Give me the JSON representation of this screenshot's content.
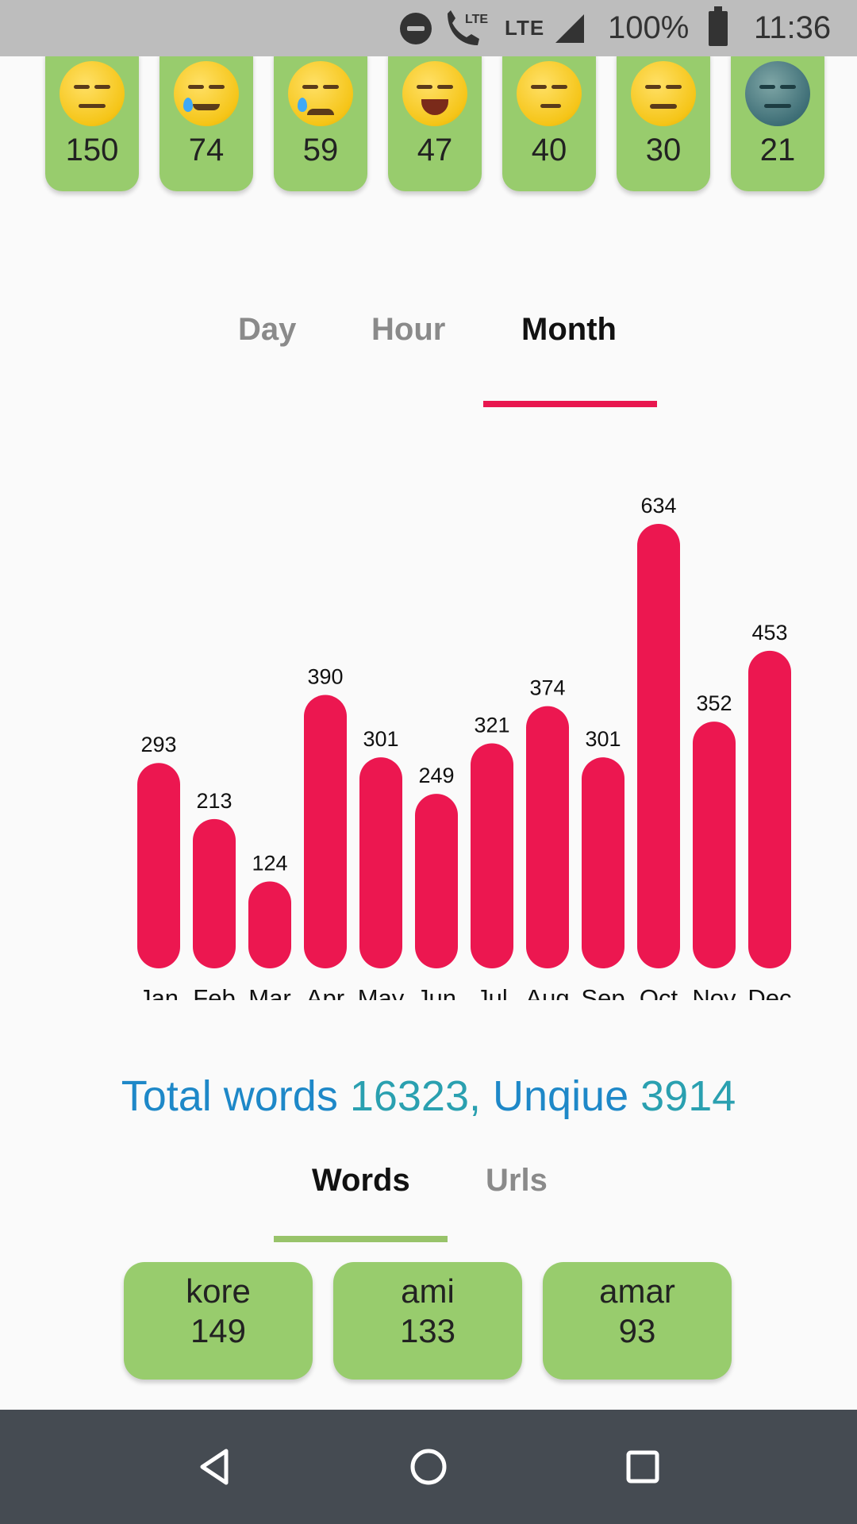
{
  "status_bar": {
    "lte_call": "LTE",
    "lte": "LTE",
    "battery_percent": "100%",
    "time": "11:36",
    "icons": [
      "do-not-disturb-icon",
      "volte-call-icon",
      "signal-icon",
      "battery-icon"
    ]
  },
  "emoji_stats": [
    {
      "emoji": "expressionless-face",
      "count": "150"
    },
    {
      "emoji": "smiling-face-with-tear",
      "count": "74"
    },
    {
      "emoji": "crying-face",
      "count": "59"
    },
    {
      "emoji": "grinning-squinting-face",
      "count": "47"
    },
    {
      "emoji": "unamused-face",
      "count": "40"
    },
    {
      "emoji": "woozy-face",
      "count": "30"
    },
    {
      "emoji": "new-moon-face",
      "count": "21"
    }
  ],
  "time_tabs": {
    "tabs": [
      "Day",
      "Hour",
      "Month"
    ],
    "selected": "Month",
    "accent_color": "#e8174f"
  },
  "chart_data": {
    "type": "bar",
    "categories": [
      "Jan",
      "Feb",
      "Mar",
      "Apr",
      "May",
      "Jun",
      "Jul",
      "Aug",
      "Sep",
      "Oct",
      "Nov",
      "Dec"
    ],
    "values": [
      293,
      213,
      124,
      390,
      301,
      249,
      321,
      374,
      301,
      634,
      352,
      453
    ],
    "bar_color": "#ec1750",
    "ylim": [
      0,
      634
    ],
    "grid": false
  },
  "totals": {
    "prefix": "Total words ",
    "total_words": "16323,",
    "unique_label": " Unqiue ",
    "unique_words": "3914"
  },
  "word_tabs": {
    "tabs": [
      "Words",
      "Urls"
    ],
    "selected": "Words",
    "accent_color": "#98c36a"
  },
  "top_words": [
    {
      "word": "kore",
      "count": "149"
    },
    {
      "word": "ami",
      "count": "133"
    },
    {
      "word": "amar",
      "count": "93"
    }
  ],
  "nav_bar": {
    "buttons": [
      "back-icon",
      "home-icon",
      "recents-icon"
    ]
  }
}
